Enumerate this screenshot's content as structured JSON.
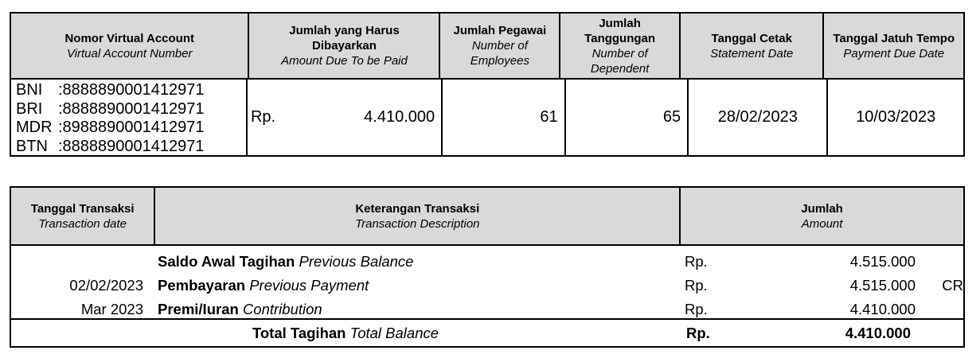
{
  "summary": {
    "headers": [
      {
        "id": "Nomor Virtual Account",
        "en": "Virtual Account Number"
      },
      {
        "id": "Jumlah yang Harus Dibayarkan",
        "en": "Amount Due To be Paid"
      },
      {
        "id": "Jumlah Pegawai",
        "en": "Number of Employees"
      },
      {
        "id": "Jumlah Tanggungan",
        "en": "Number of Dependent"
      },
      {
        "id": "Tanggal Cetak",
        "en": "Statement Date"
      },
      {
        "id": "Tanggal Jatuh Tempo",
        "en": "Payment Due Date"
      }
    ],
    "accounts": [
      {
        "bank": "BNI",
        "number": ":8888890001412971"
      },
      {
        "bank": "BRI",
        "number": ":8888890001412971"
      },
      {
        "bank": "MDR",
        "number": ":8988890001412971"
      },
      {
        "bank": "BTN",
        "number": ":8888890001412971"
      }
    ],
    "currency": "Rp.",
    "amount_due": "4.410.000",
    "employees": "61",
    "dependents": "65",
    "statement_date": "28/02/2023",
    "due_date": "10/03/2023"
  },
  "transactions": {
    "headers": [
      {
        "id": "Tanggal Transaksi",
        "en": "Transaction date"
      },
      {
        "id": "Keterangan Transaksi",
        "en": "Transaction Description"
      },
      {
        "id": "Jumlah",
        "en": "Amount"
      }
    ],
    "rows": [
      {
        "date": "",
        "desc_id": "Saldo Awal Tagihan",
        "desc_en": "Previous Balance",
        "currency": "Rp.",
        "amount": "4.515.000",
        "flag": ""
      },
      {
        "date": "02/02/2023",
        "desc_id": "Pembayaran",
        "desc_en": "Previous Payment",
        "currency": "Rp.",
        "amount": "4.515.000",
        "flag": "CR"
      },
      {
        "date": "Mar 2023",
        "desc_id": "Premi/Iuran",
        "desc_en": "Contribution",
        "currency": "Rp.",
        "amount": "4.410.000",
        "flag": ""
      }
    ],
    "total": {
      "desc_id": "Total Tagihan",
      "desc_en": "Total Balance",
      "currency": "Rp.",
      "amount": "4.410.000"
    }
  }
}
